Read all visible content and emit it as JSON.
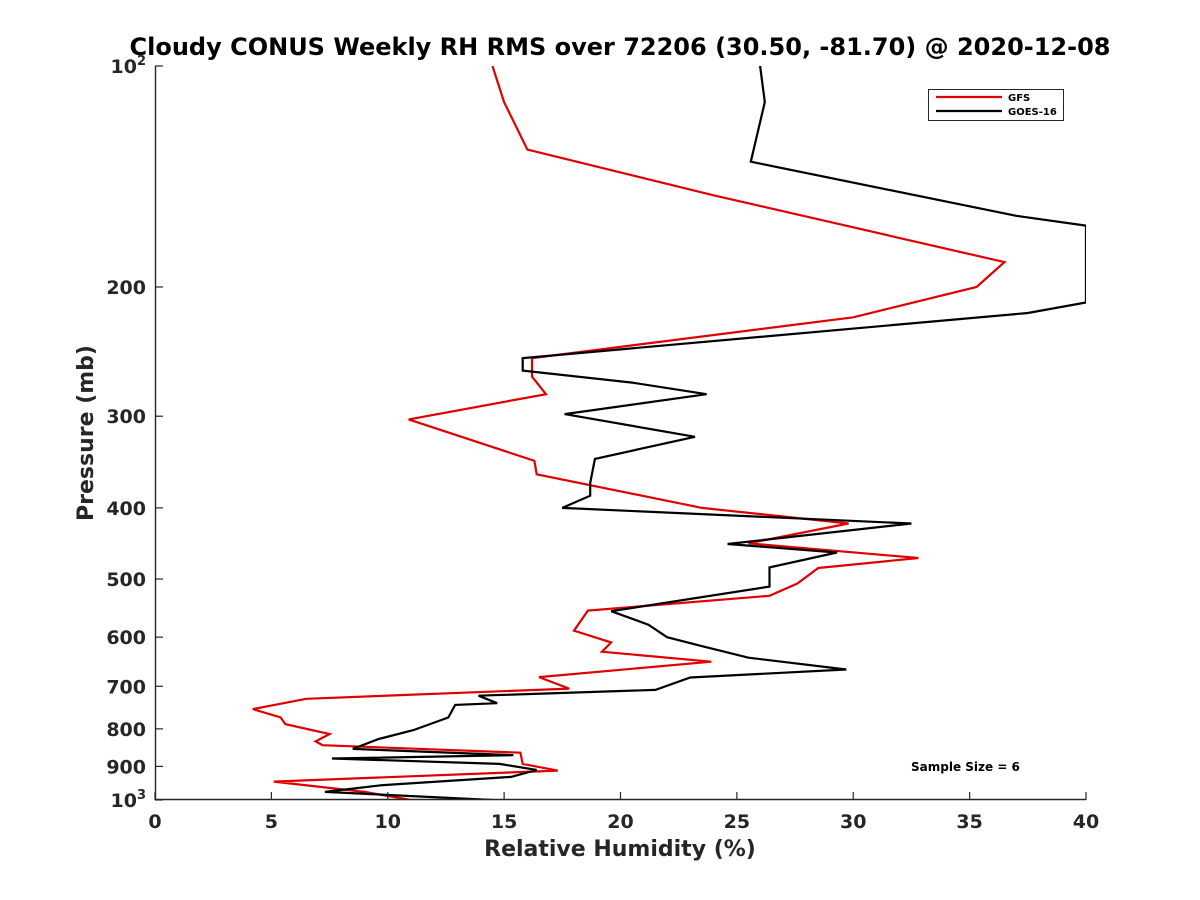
{
  "chart_data": {
    "type": "line",
    "title": "Cloudy CONUS Weekly RH RMS over 72206 (30.50, -81.70) @ 2020-12-08",
    "xlabel": "Relative Humidity (%)",
    "ylabel": "Pressure (mb)",
    "xlim": [
      0,
      40
    ],
    "ylim": [
      100,
      1000
    ],
    "yscale": "log",
    "y_reversed": true,
    "grid": false,
    "legend_position": "top-right",
    "x_ticks": [
      0,
      5,
      10,
      15,
      20,
      25,
      30,
      35,
      40
    ],
    "x_tick_labels": [
      "0",
      "5",
      "10",
      "15",
      "20",
      "25",
      "30",
      "35",
      "40"
    ],
    "y_ticks": [
      100,
      200,
      300,
      400,
      500,
      600,
      700,
      800,
      900,
      1000
    ],
    "y_tick_labels": [
      {
        "base": "10",
        "exp": "2"
      },
      {
        "base": "200",
        "exp": ""
      },
      {
        "base": "300",
        "exp": ""
      },
      {
        "base": "400",
        "exp": ""
      },
      {
        "base": "500",
        "exp": ""
      },
      {
        "base": "600",
        "exp": ""
      },
      {
        "base": "700",
        "exp": ""
      },
      {
        "base": "800",
        "exp": ""
      },
      {
        "base": "900",
        "exp": ""
      },
      {
        "base": "10",
        "exp": "3"
      }
    ],
    "annotation": "Sample Size = 6",
    "series": [
      {
        "name": "GFS",
        "color": "#e00000",
        "points": [
          [
            14.5,
            100
          ],
          [
            15.0,
            112
          ],
          [
            16.0,
            130
          ],
          [
            24.0,
            150
          ],
          [
            36.5,
            185
          ],
          [
            35.3,
            200
          ],
          [
            30.0,
            220
          ],
          [
            16.2,
            250
          ],
          [
            16.2,
            265
          ],
          [
            16.8,
            280
          ],
          [
            10.9,
            303
          ],
          [
            16.3,
            345
          ],
          [
            16.4,
            360
          ],
          [
            23.5,
            400
          ],
          [
            29.8,
            420
          ],
          [
            25.5,
            447
          ],
          [
            32.8,
            468
          ],
          [
            28.5,
            483
          ],
          [
            27.6,
            507
          ],
          [
            26.4,
            527
          ],
          [
            18.6,
            552
          ],
          [
            18.0,
            588
          ],
          [
            19.6,
            610
          ],
          [
            19.2,
            628
          ],
          [
            23.9,
            648
          ],
          [
            16.5,
            680
          ],
          [
            17.8,
            705
          ],
          [
            6.5,
            728
          ],
          [
            4.2,
            752
          ],
          [
            5.4,
            772
          ],
          [
            5.6,
            788
          ],
          [
            7.5,
            813
          ],
          [
            6.9,
            832
          ],
          [
            7.2,
            842
          ],
          [
            15.7,
            862
          ],
          [
            15.8,
            893
          ],
          [
            17.3,
            912
          ],
          [
            5.1,
            944
          ],
          [
            9.0,
            975
          ],
          [
            11.0,
            1000
          ]
        ]
      },
      {
        "name": "GOES-16",
        "color": "#000000",
        "points": [
          [
            26.0,
            100
          ],
          [
            26.2,
            112
          ],
          [
            25.6,
            135
          ],
          [
            37.0,
            160
          ],
          [
            40.0,
            165
          ],
          [
            40.0,
            210
          ],
          [
            37.5,
            217
          ],
          [
            15.8,
            250
          ],
          [
            15.8,
            260
          ],
          [
            20.5,
            270
          ],
          [
            23.7,
            280
          ],
          [
            17.6,
            298
          ],
          [
            23.2,
            320
          ],
          [
            18.9,
            343
          ],
          [
            18.7,
            370
          ],
          [
            18.7,
            385
          ],
          [
            17.5,
            400
          ],
          [
            32.5,
            420
          ],
          [
            24.6,
            448
          ],
          [
            29.3,
            460
          ],
          [
            26.4,
            482
          ],
          [
            26.4,
            512
          ],
          [
            19.6,
            553
          ],
          [
            21.2,
            577
          ],
          [
            22.0,
            600
          ],
          [
            23.4,
            616
          ],
          [
            25.5,
            640
          ],
          [
            29.7,
            664
          ],
          [
            23.0,
            681
          ],
          [
            21.5,
            708
          ],
          [
            13.9,
            721
          ],
          [
            14.7,
            738
          ],
          [
            12.9,
            742
          ],
          [
            12.6,
            772
          ],
          [
            11.1,
            803
          ],
          [
            9.6,
            826
          ],
          [
            8.5,
            852
          ],
          [
            15.4,
            869
          ],
          [
            7.6,
            878
          ],
          [
            14.8,
            893
          ],
          [
            16.4,
            910
          ],
          [
            15.3,
            930
          ],
          [
            9.7,
            955
          ],
          [
            7.3,
            975
          ],
          [
            14.5,
            1000
          ]
        ]
      }
    ]
  }
}
